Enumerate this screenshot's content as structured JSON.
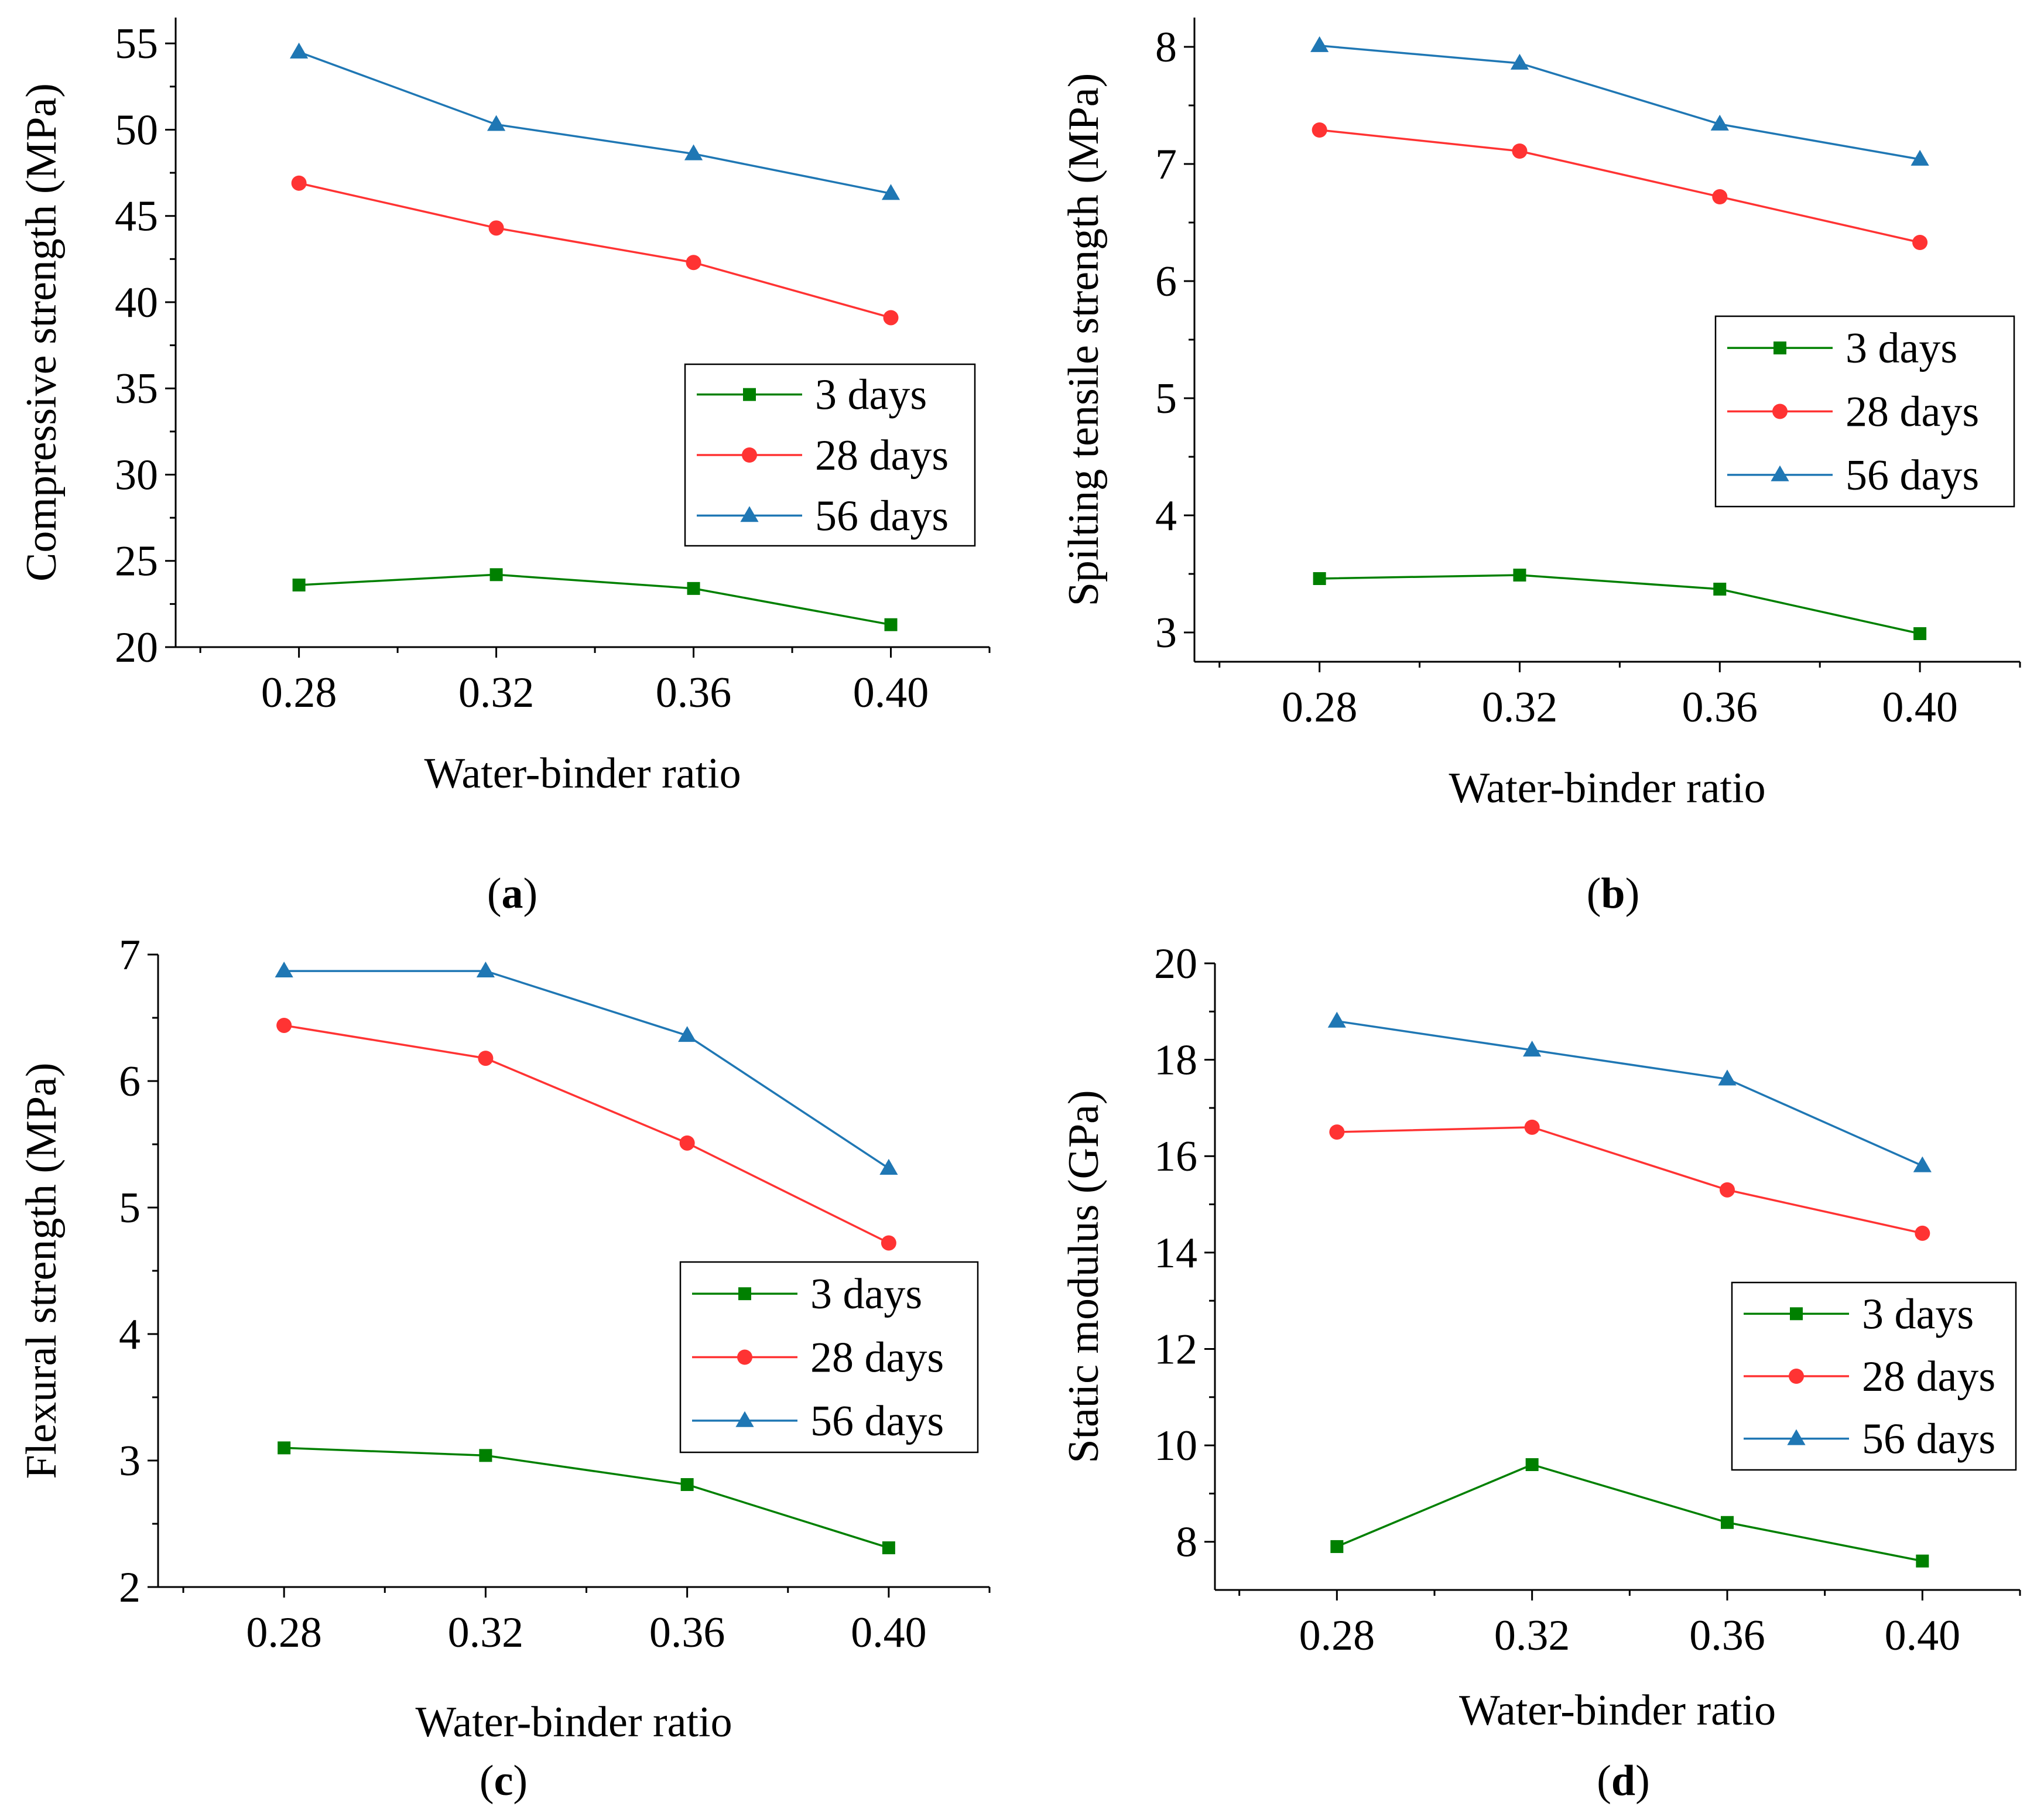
{
  "colors": {
    "3 days": "#008000",
    "28 days": "#ff3333",
    "56 days": "#1f77b4"
  },
  "chart_data": [
    {
      "id": "a",
      "type": "line",
      "panel_label": "a",
      "xlabel": "Water-binder ratio",
      "ylabel": "Compressive strength (MPa)",
      "categories": [
        "0.28",
        "0.32",
        "0.36",
        "0.40"
      ],
      "x": [
        0.28,
        0.32,
        0.36,
        0.4
      ],
      "xlim": [
        0.255,
        0.42
      ],
      "ylim": [
        20,
        56.5
      ],
      "yticks": [
        20,
        25,
        30,
        35,
        40,
        45,
        50,
        55
      ],
      "legend_position": "center-right",
      "series": [
        {
          "name": "3 days",
          "marker": "square",
          "values": [
            23.6,
            24.2,
            23.4,
            21.3
          ]
        },
        {
          "name": "28 days",
          "marker": "circle",
          "values": [
            46.9,
            44.3,
            42.3,
            39.1
          ]
        },
        {
          "name": "56 days",
          "marker": "triangle",
          "values": [
            54.5,
            50.3,
            48.6,
            46.3
          ]
        }
      ]
    },
    {
      "id": "b",
      "type": "line",
      "panel_label": "b",
      "xlabel": "Water-binder ratio",
      "ylabel": "Spilting tensile strength (MPa)",
      "categories": [
        "0.28",
        "0.32",
        "0.36",
        "0.40"
      ],
      "x": [
        0.28,
        0.32,
        0.36,
        0.4
      ],
      "xlim": [
        0.255,
        0.42
      ],
      "ylim": [
        2.75,
        8.25
      ],
      "yticks": [
        3,
        4,
        5,
        6,
        7,
        8
      ],
      "legend_position": "center-right",
      "series": [
        {
          "name": "3 days",
          "marker": "square",
          "values": [
            3.46,
            3.49,
            3.37,
            2.99
          ]
        },
        {
          "name": "28 days",
          "marker": "circle",
          "values": [
            7.29,
            7.11,
            6.72,
            6.33
          ]
        },
        {
          "name": "56 days",
          "marker": "triangle",
          "values": [
            8.01,
            7.86,
            7.34,
            7.04
          ]
        }
      ]
    },
    {
      "id": "c",
      "type": "line",
      "panel_label": "c",
      "xlabel": "Water-binder ratio",
      "ylabel": "Flexural strength (MPa)",
      "categories": [
        "0.28",
        "0.32",
        "0.36",
        "0.40"
      ],
      "x": [
        0.28,
        0.32,
        0.36,
        0.4
      ],
      "xlim": [
        0.255,
        0.42
      ],
      "ylim": [
        2,
        7
      ],
      "yticks": [
        2,
        3,
        4,
        5,
        6,
        7
      ],
      "legend_position": "lower-right",
      "series": [
        {
          "name": "3 days",
          "marker": "square",
          "values": [
            3.1,
            3.04,
            2.81,
            2.31
          ]
        },
        {
          "name": "28 days",
          "marker": "circle",
          "values": [
            6.44,
            6.18,
            5.51,
            4.72
          ]
        },
        {
          "name": "56 days",
          "marker": "triangle",
          "values": [
            6.87,
            6.87,
            6.36,
            5.31
          ]
        }
      ]
    },
    {
      "id": "d",
      "type": "line",
      "panel_label": "d",
      "xlabel": "Water-binder ratio",
      "ylabel": "Static modulus (GPa)",
      "categories": [
        "0.28",
        "0.32",
        "0.36",
        "0.40"
      ],
      "x": [
        0.28,
        0.32,
        0.36,
        0.4
      ],
      "xlim": [
        0.255,
        0.42
      ],
      "ylim": [
        7,
        20
      ],
      "yticks": [
        8,
        10,
        12,
        14,
        16,
        18,
        20
      ],
      "legend_position": "lower-right",
      "series": [
        {
          "name": "3 days",
          "marker": "square",
          "values": [
            7.9,
            9.6,
            8.4,
            7.6
          ]
        },
        {
          "name": "28 days",
          "marker": "circle",
          "values": [
            16.5,
            16.6,
            15.3,
            14.4
          ]
        },
        {
          "name": "56 days",
          "marker": "triangle",
          "values": [
            18.8,
            18.2,
            17.6,
            15.8
          ]
        }
      ]
    }
  ]
}
